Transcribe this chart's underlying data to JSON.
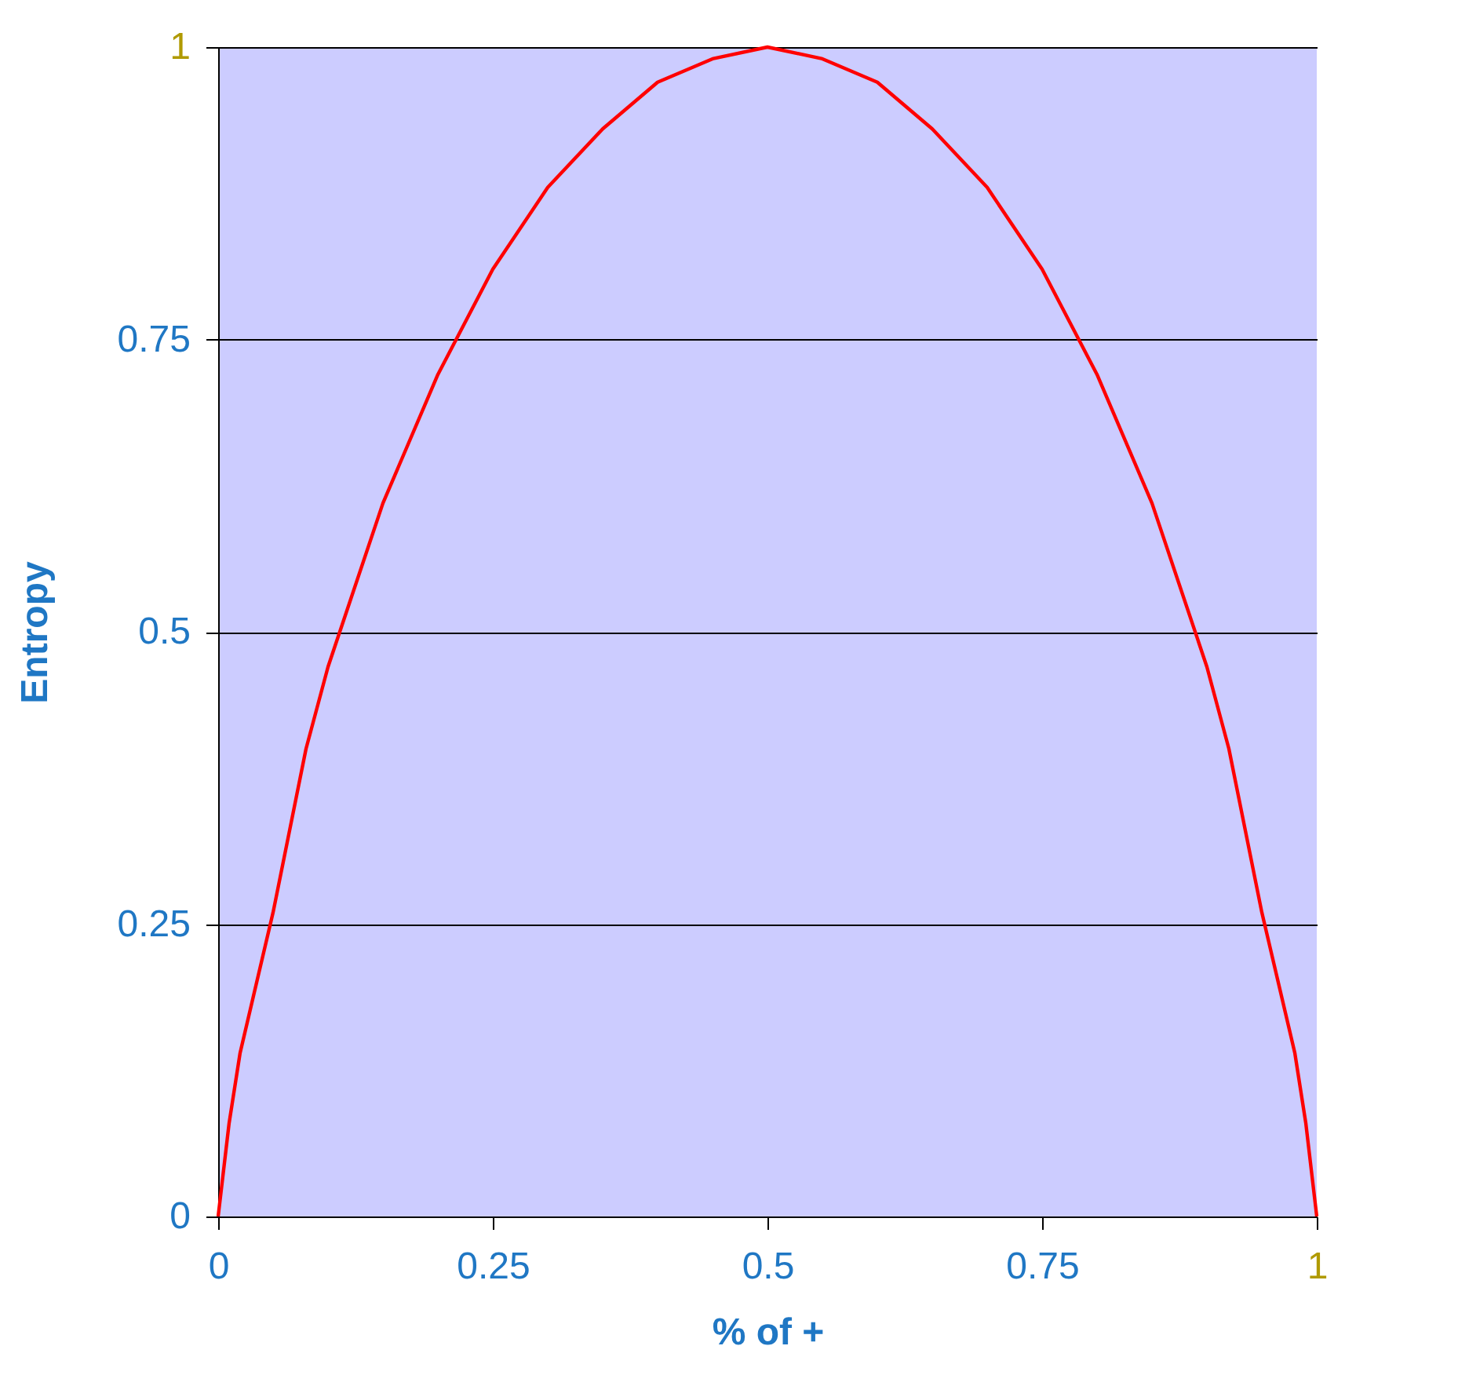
{
  "chart_data": {
    "type": "line",
    "xlabel": "% of +",
    "ylabel": "Entropy",
    "x": [
      0,
      0.01,
      0.02,
      0.05,
      0.08,
      0.1,
      0.15,
      0.2,
      0.25,
      0.3,
      0.35,
      0.4,
      0.45,
      0.5,
      0.55,
      0.6,
      0.65,
      0.7,
      0.75,
      0.8,
      0.85,
      0.9,
      0.92,
      0.95,
      0.98,
      0.99,
      1
    ],
    "series": [
      {
        "color": "#ff0000",
        "values": [
          0,
          0.08,
          0.14,
          0.26,
          0.4,
          0.47,
          0.61,
          0.72,
          0.81,
          0.88,
          0.93,
          0.97,
          0.99,
          1,
          0.99,
          0.97,
          0.93,
          0.88,
          0.81,
          0.72,
          0.61,
          0.47,
          0.4,
          0.26,
          0.14,
          0.08,
          0
        ]
      }
    ],
    "xlim": [
      0,
      1
    ],
    "xticks": [
      0,
      0.25,
      0.5,
      0.75,
      1
    ],
    "ylim": [
      0,
      1
    ],
    "yticks": [
      0,
      0.25,
      0.5,
      0.75,
      1
    ],
    "grid": "y",
    "legend": false,
    "marker": "none",
    "line_style": "solid"
  }
}
